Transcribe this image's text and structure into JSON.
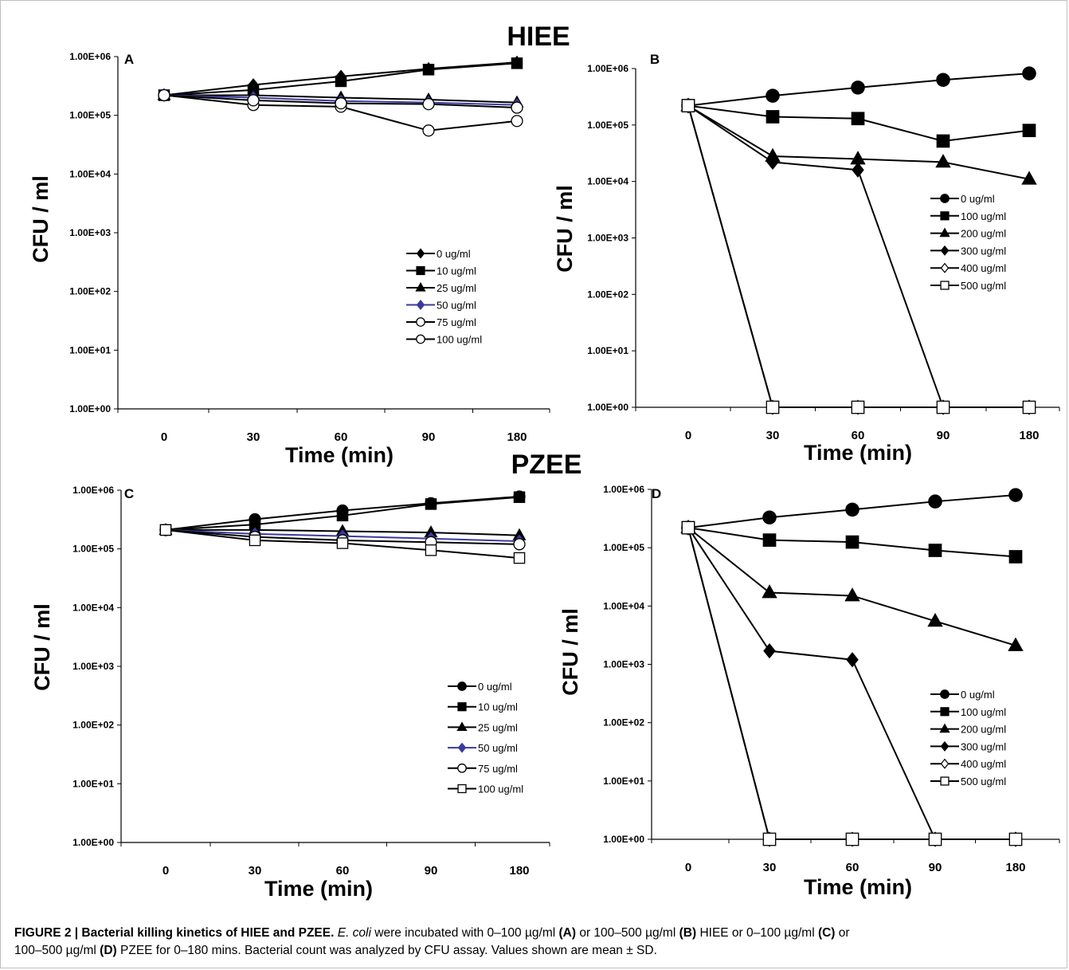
{
  "figure": {
    "group_titles": [
      "HIEE",
      "PZEE"
    ],
    "caption": {
      "label": "FIGURE 2 | Bacterial killing kinetics of HIEE and PZEE.",
      "organism": "E. coli",
      "p1": " were incubated with 0–100 µg/ml ",
      "a": "(A)",
      "p2": " or 100–500 µg/ml ",
      "b": "(B)",
      "p3": " HIEE or 0–100 µg/ml ",
      "c": "(C)",
      "p4": " or",
      "p5": "100–500 µg/ml ",
      "d": "(D)",
      "p6": " PZEE for 0–180 mins. Bacterial count was analyzed by CFU assay. Values shown are mean ± SD."
    }
  },
  "chart_data": [
    {
      "panel": "A",
      "type": "line",
      "xlabel": "Time (min)",
      "ylabel": "CFU / ml",
      "x": [
        "0",
        "30",
        "60",
        "90",
        "180"
      ],
      "y_scale": "log",
      "ylim": [
        1,
        1000000
      ],
      "y_ticks": [
        "1.00E+00",
        "1.00E+01",
        "1.00E+02",
        "1.00E+03",
        "1.00E+04",
        "1.00E+05",
        "1.00E+06"
      ],
      "legend_position": "lower-right",
      "series": [
        {
          "name": "0 ug/ml",
          "marker": "diamond",
          "values": [
            220000,
            330000,
            460000,
            620000,
            800000
          ]
        },
        {
          "name": "10 ug/ml",
          "marker": "square",
          "values": [
            220000,
            270000,
            380000,
            600000,
            770000
          ]
        },
        {
          "name": "25 ug/ml",
          "marker": "triangle",
          "values": [
            220000,
            220000,
            200000,
            185000,
            165000
          ]
        },
        {
          "name": "50 ug/ml",
          "marker": "diamond",
          "color": "#3a3aa0",
          "values": [
            220000,
            200000,
            175000,
            165000,
            150000
          ]
        },
        {
          "name": "75 ug/ml",
          "marker": "circle-open",
          "values": [
            220000,
            150000,
            140000,
            55000,
            80000
          ]
        },
        {
          "name": "100 ug/ml",
          "marker": "circle-open",
          "values": [
            220000,
            180000,
            160000,
            155000,
            135000
          ]
        }
      ]
    },
    {
      "panel": "B",
      "type": "line",
      "xlabel": "Time (min)",
      "ylabel": "CFU / ml",
      "x": [
        "0",
        "30",
        "60",
        "90",
        "180"
      ],
      "y_scale": "log",
      "ylim": [
        1,
        1000000
      ],
      "y_ticks": [
        "1.00E+00",
        "1.00E+01",
        "1.00E+02",
        "1.00E+03",
        "1.00E+04",
        "1.00E+05",
        "1.00E+06"
      ],
      "legend_position": "right",
      "series": [
        {
          "name": "0 ug/ml",
          "marker": "circle",
          "values": [
            220000,
            330000,
            460000,
            630000,
            820000
          ]
        },
        {
          "name": "100 ug/ml",
          "marker": "square",
          "values": [
            220000,
            140000,
            130000,
            52000,
            80000
          ]
        },
        {
          "name": "200 ug/ml",
          "marker": "triangle",
          "values": [
            220000,
            28000,
            25000,
            22000,
            11000
          ]
        },
        {
          "name": "300 ug/ml",
          "marker": "diamond",
          "values": [
            220000,
            22000,
            16000,
            1,
            1
          ]
        },
        {
          "name": "400 ug/ml",
          "marker": "diamond-open",
          "values": [
            220000,
            1,
            1,
            1,
            1
          ]
        },
        {
          "name": "500 ug/ml",
          "marker": "square-open",
          "values": [
            220000,
            1,
            1,
            1,
            1
          ]
        }
      ]
    },
    {
      "panel": "C",
      "type": "line",
      "xlabel": "Time (min)",
      "ylabel": "CFU / ml",
      "x": [
        "0",
        "30",
        "60",
        "90",
        "180"
      ],
      "y_scale": "log",
      "ylim": [
        1,
        1000000
      ],
      "y_ticks": [
        "1.00E+00",
        "1.00E+01",
        "1.00E+02",
        "1.00E+03",
        "1.00E+04",
        "1.00E+05",
        "1.00E+06"
      ],
      "legend_position": "lower-right",
      "series": [
        {
          "name": "0 ug/ml",
          "marker": "circle",
          "values": [
            210000,
            320000,
            450000,
            600000,
            780000
          ]
        },
        {
          "name": "10 ug/ml",
          "marker": "square",
          "values": [
            210000,
            260000,
            370000,
            580000,
            760000
          ]
        },
        {
          "name": "25 ug/ml",
          "marker": "triangle",
          "values": [
            210000,
            210000,
            200000,
            190000,
            170000
          ]
        },
        {
          "name": "50 ug/ml",
          "marker": "diamond",
          "color": "#3a3aa0",
          "values": [
            210000,
            180000,
            165000,
            150000,
            135000
          ]
        },
        {
          "name": "75 ug/ml",
          "marker": "circle-open",
          "values": [
            210000,
            160000,
            140000,
            130000,
            120000
          ]
        },
        {
          "name": "100 ug/ml",
          "marker": "square-open",
          "values": [
            210000,
            140000,
            125000,
            95000,
            70000
          ]
        }
      ]
    },
    {
      "panel": "D",
      "type": "line",
      "xlabel": "Time (min)",
      "ylabel": "CFU / ml",
      "x": [
        "0",
        "30",
        "60",
        "90",
        "180"
      ],
      "y_scale": "log",
      "ylim": [
        1,
        1000000
      ],
      "y_ticks": [
        "1.00E+00",
        "1.00E+01",
        "1.00E+02",
        "1.00E+03",
        "1.00E+04",
        "1.00E+05",
        "1.00E+06"
      ],
      "legend_position": "lower-right",
      "series": [
        {
          "name": "0 ug/ml",
          "marker": "circle",
          "values": [
            220000,
            330000,
            450000,
            620000,
            800000
          ]
        },
        {
          "name": "100 ug/ml",
          "marker": "square",
          "values": [
            220000,
            135000,
            125000,
            90000,
            70000
          ]
        },
        {
          "name": "200 ug/ml",
          "marker": "triangle",
          "values": [
            220000,
            17000,
            15000,
            5500,
            2100
          ]
        },
        {
          "name": "300 ug/ml",
          "marker": "diamond",
          "values": [
            220000,
            1700,
            1200,
            1,
            1
          ]
        },
        {
          "name": "400 ug/ml",
          "marker": "diamond-open",
          "values": [
            220000,
            1,
            1,
            1,
            1
          ]
        },
        {
          "name": "500 ug/ml",
          "marker": "square-open",
          "values": [
            220000,
            1,
            1,
            1,
            1
          ]
        }
      ]
    }
  ]
}
